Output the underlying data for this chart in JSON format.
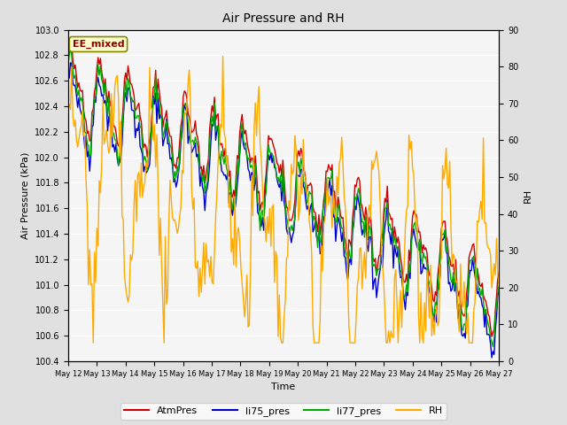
{
  "title": "Air Pressure and RH",
  "xlabel": "Time",
  "ylabel_left": "Air Pressure (kPa)",
  "ylabel_right": "RH",
  "annotation": "EE_mixed",
  "ylim_left": [
    100.4,
    103.0
  ],
  "ylim_right": [
    0,
    90
  ],
  "yticks_left": [
    100.4,
    100.6,
    100.8,
    101.0,
    101.2,
    101.4,
    101.6,
    101.8,
    102.0,
    102.2,
    102.4,
    102.6,
    102.8,
    103.0
  ],
  "yticks_right": [
    0,
    10,
    20,
    30,
    40,
    50,
    60,
    70,
    80,
    90
  ],
  "xtick_labels": [
    "May 12",
    "May 13",
    "May 14",
    "May 15",
    "May 16",
    "May 17",
    "May 18",
    "May 19",
    "May 20",
    "May 21",
    "May 22",
    "May 23",
    "May 24",
    "May 25",
    "May 26",
    "May 27"
  ],
  "colors": {
    "AtmPres": "#cc0000",
    "li75_pres": "#0000cc",
    "li77_pres": "#00aa00",
    "RH": "#ffaa00"
  },
  "fig_bg": "#e0e0e0",
  "plot_bg": "#f5f5f5",
  "legend_entries": [
    "AtmPres",
    "li75_pres",
    "li77_pres",
    "RH"
  ]
}
